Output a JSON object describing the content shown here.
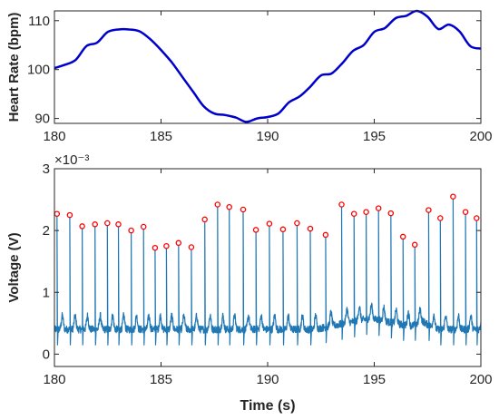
{
  "chart_data": [
    {
      "type": "line",
      "title": "",
      "xlabel": "",
      "ylabel": "Heart Rate (bpm)",
      "xlim": [
        180,
        200
      ],
      "ylim": [
        89,
        112
      ],
      "xticks": [
        180,
        185,
        190,
        195,
        200
      ],
      "yticks": [
        90,
        100,
        110
      ],
      "xtick_labels": [
        "180",
        "185",
        "190",
        "195",
        "200"
      ],
      "ytick_labels": [
        "90",
        "100",
        "110"
      ],
      "grid": false,
      "series": [
        {
          "color": "#0000cc",
          "x": [
            180,
            180.5,
            181,
            181.5,
            182,
            182.5,
            183,
            183.5,
            184,
            184.5,
            185,
            185.5,
            186,
            186.5,
            187,
            187.5,
            188,
            188.5,
            189,
            189.5,
            190,
            190.5,
            191,
            191.5,
            192,
            192.5,
            193,
            193.5,
            194,
            194.5,
            195,
            195.5,
            196,
            196.5,
            197,
            197.5,
            198,
            198.5,
            199,
            199.5,
            200
          ],
          "values": [
            100.3,
            101.0,
            102.0,
            104.8,
            105.5,
            107.7,
            108.2,
            108.2,
            107.8,
            106.2,
            104.0,
            101.5,
            98.5,
            95.5,
            92.5,
            91.0,
            90.7,
            90.2,
            89.3,
            90.0,
            90.3,
            91.0,
            93.3,
            94.5,
            96.5,
            98.8,
            99.2,
            101.3,
            103.8,
            105.0,
            107.7,
            108.5,
            110.5,
            111.0,
            112.0,
            110.8,
            108.3,
            109.2,
            107.8,
            104.8,
            104.3
          ]
        }
      ]
    },
    {
      "type": "line",
      "title": "",
      "xlabel": "Time (s)",
      "ylabel": "Voltage (V)",
      "y_exponent_label": "×10⁻³",
      "xlim": [
        180,
        200
      ],
      "ylim": [
        -0.0002,
        0.003
      ],
      "xticks": [
        180,
        185,
        190,
        195,
        200
      ],
      "yticks": [
        0,
        0.001,
        0.002,
        0.003
      ],
      "xtick_labels": [
        "180",
        "185",
        "190",
        "195",
        "200"
      ],
      "ytick_labels": [
        "0",
        "1",
        "2",
        "3"
      ],
      "grid": false,
      "series": [
        {
          "color": "#1f77b4",
          "r_peak_times": [
            180.12,
            180.72,
            181.3,
            181.9,
            182.48,
            183.0,
            183.6,
            184.18,
            184.72,
            185.25,
            185.82,
            186.42,
            187.05,
            187.65,
            188.2,
            188.85,
            189.45,
            190.08,
            190.72,
            191.38,
            192.0,
            192.72,
            193.47,
            194.05,
            194.62,
            195.2,
            195.78,
            196.35,
            196.9,
            197.55,
            198.1,
            198.7,
            199.28,
            199.8
          ]
        },
        {
          "color": "#ff0000",
          "marker": "circle",
          "x": [
            180.12,
            180.72,
            181.3,
            181.9,
            182.48,
            183.0,
            183.6,
            184.18,
            184.72,
            185.25,
            185.82,
            186.42,
            187.05,
            187.65,
            188.2,
            188.85,
            189.45,
            190.08,
            190.72,
            191.38,
            192.0,
            192.72,
            193.47,
            194.05,
            194.62,
            195.2,
            195.78,
            196.35,
            196.9,
            197.55,
            198.1,
            198.7,
            199.28,
            199.8
          ],
          "values": [
            0.00227,
            0.00225,
            0.00207,
            0.0021,
            0.00212,
            0.0021,
            0.002,
            0.00206,
            0.00172,
            0.00175,
            0.0018,
            0.00173,
            0.00218,
            0.00242,
            0.00238,
            0.00234,
            0.00201,
            0.00211,
            0.00202,
            0.00212,
            0.00203,
            0.00193,
            0.00242,
            0.00227,
            0.0023,
            0.00236,
            0.00228,
            0.0019,
            0.00177,
            0.00233,
            0.0022,
            0.00255,
            0.0023,
            0.0022
          ]
        }
      ]
    }
  ]
}
